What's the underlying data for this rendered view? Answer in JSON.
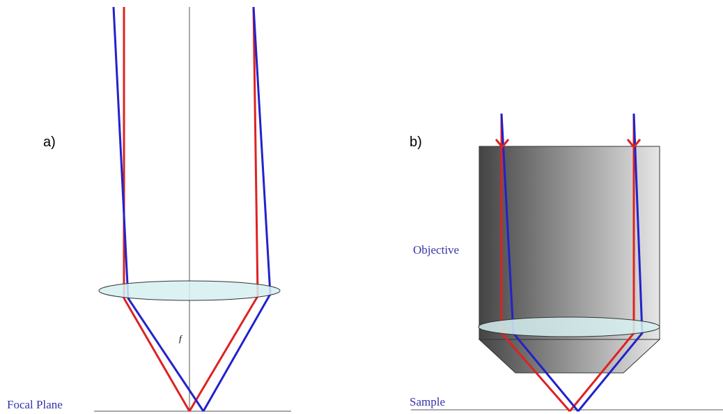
{
  "labels": {
    "panel_a": "a)",
    "panel_b": "b)",
    "focal_length": "f",
    "focal_plane": "Focal Plane",
    "objective": "Objective",
    "sample": "Sample"
  }
}
